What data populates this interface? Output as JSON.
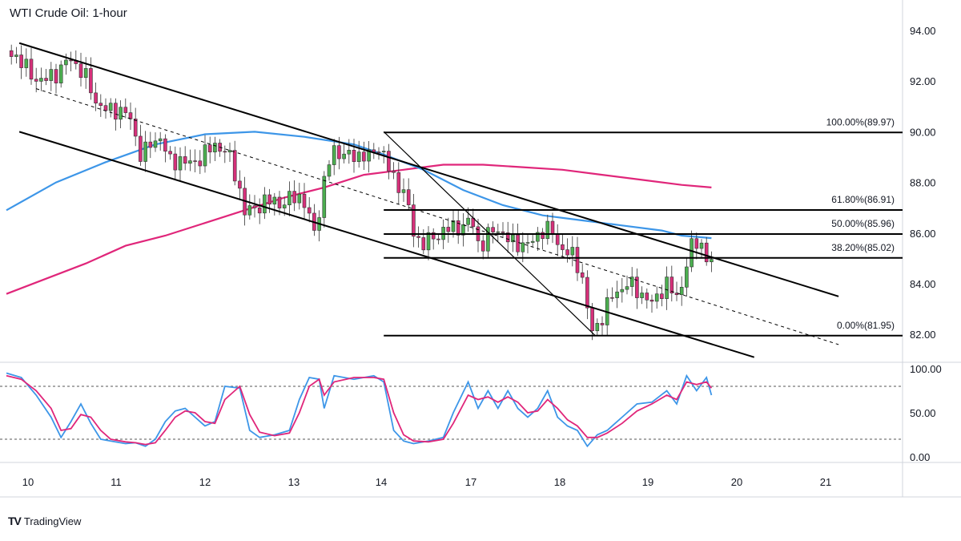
{
  "header": {
    "title": "WTI Crude Oil: 1-hour"
  },
  "brand": {
    "logo": "TV",
    "name": "TradingView"
  },
  "colors": {
    "up": "#4caf50",
    "down": "#d6307a",
    "ma_fast": "#3d96e8",
    "ma_slow": "#e0267a",
    "stoch_k": "#3d96e8",
    "stoch_d": "#e0267a",
    "line": "#000000",
    "grid": "#d1d4dc"
  },
  "chart_data": [
    {
      "type": "candlestick",
      "title": "WTI Crude Oil: 1-hour",
      "x_labels": [
        "10",
        "11",
        "12",
        "13",
        "14",
        "17",
        "18",
        "19",
        "20",
        "21"
      ],
      "y_ticks": [
        "94.00",
        "92.00",
        "90.00",
        "88.00",
        "86.00",
        "84.00",
        "82.00"
      ],
      "ylim": [
        80.9,
        95.2
      ],
      "close_path": [
        [
          0,
          93.2
        ],
        [
          1.3,
          92.9
        ],
        [
          2.5,
          92.2
        ],
        [
          3.7,
          92.0
        ],
        [
          5,
          92.3
        ],
        [
          6.4,
          92.9
        ],
        [
          7.8,
          92.3
        ],
        [
          9,
          91.2
        ],
        [
          10.2,
          90.8
        ],
        [
          11.3,
          90.9
        ],
        [
          12.4,
          90.6
        ],
        [
          13,
          89.8
        ],
        [
          13.6,
          89.0
        ],
        [
          14.5,
          89.5
        ],
        [
          15.5,
          89.8
        ],
        [
          16.4,
          88.8
        ],
        [
          17.5,
          88.9
        ],
        [
          18.3,
          88.7
        ],
        [
          19.3,
          88.9
        ],
        [
          20.2,
          89.2
        ],
        [
          21.0,
          89.5
        ],
        [
          21.8,
          89.3
        ],
        [
          22.6,
          88.9
        ],
        [
          23.3,
          88.0
        ],
        [
          24.0,
          86.8
        ],
        [
          25,
          87.0
        ],
        [
          26,
          87.2
        ],
        [
          27,
          87.3
        ],
        [
          28,
          87.1
        ],
        [
          28.8,
          87.5
        ],
        [
          29.8,
          87.4
        ],
        [
          30.7,
          86.3
        ],
        [
          31.2,
          86.0
        ],
        [
          31.7,
          87.5
        ],
        [
          32.2,
          88.3
        ],
        [
          32.8,
          89.3
        ],
        [
          33.5,
          89.2
        ],
        [
          34.5,
          89.0
        ],
        [
          35.5,
          89.1
        ],
        [
          36.5,
          89.0
        ],
        [
          37.6,
          89.5
        ],
        [
          38.2,
          88.8
        ],
        [
          38.9,
          88.2
        ],
        [
          39.5,
          87.9
        ],
        [
          40.2,
          87.6
        ],
        [
          40.7,
          86.4
        ],
        [
          41.2,
          85.8
        ],
        [
          42,
          85.6
        ],
        [
          43,
          85.8
        ],
        [
          44,
          86.1
        ],
        [
          45,
          86.2
        ],
        [
          46,
          86.3
        ],
        [
          46.9,
          86.5
        ],
        [
          47.5,
          85.6
        ],
        [
          48,
          85.6
        ],
        [
          48.7,
          86.0
        ],
        [
          49.5,
          86.2
        ],
        [
          50.3,
          85.8
        ],
        [
          51,
          85.6
        ],
        [
          51.8,
          85.6
        ],
        [
          52.6,
          85.5
        ],
        [
          53.4,
          85.9
        ],
        [
          54.2,
          86.2
        ],
        [
          55,
          86.0
        ],
        [
          55.8,
          85.4
        ],
        [
          56.6,
          85.2
        ],
        [
          57.3,
          85.0
        ],
        [
          58.0,
          84.2
        ],
        [
          58.5,
          83.0
        ],
        [
          59,
          82.1
        ],
        [
          59.6,
          82.4
        ],
        [
          60.2,
          82.9
        ],
        [
          61,
          83.5
        ],
        [
          61.8,
          83.8
        ],
        [
          62.6,
          84.0
        ],
        [
          63.4,
          83.8
        ],
        [
          64.2,
          83.5
        ],
        [
          65,
          83.2
        ],
        [
          65.8,
          83.7
        ],
        [
          66.6,
          84.0
        ],
        [
          67.4,
          83.4
        ],
        [
          68.2,
          84.2
        ],
        [
          68.8,
          85.3
        ],
        [
          69.3,
          85.6
        ],
        [
          69.8,
          85.8
        ],
        [
          70.4,
          85.0
        ],
        [
          71,
          84.8
        ]
      ],
      "fibonacci": [
        {
          "level": "100.00%",
          "price": 89.97,
          "label": "100.00%(89.97)"
        },
        {
          "level": "61.80%",
          "price": 86.91,
          "label": "61.80%(86.91)"
        },
        {
          "level": "50.00%",
          "price": 85.96,
          "label": "50.00%(85.96)"
        },
        {
          "level": "38.20%",
          "price": 85.02,
          "label": "38.20%(85.02)"
        },
        {
          "level": "0.00%",
          "price": 81.95,
          "label": "0.00%(81.95)"
        }
      ],
      "channel_upper": [
        [
          1.3,
          93.5
        ],
        [
          83.8,
          83.5
        ]
      ],
      "channel_lower": [
        [
          1.3,
          90.0
        ],
        [
          75.3,
          81.1
        ]
      ],
      "channel_mid": [
        [
          3.0,
          91.7
        ],
        [
          83.8,
          81.6
        ]
      ],
      "swing_line": [
        [
          38.0,
          90.0
        ],
        [
          59.3,
          81.95
        ]
      ],
      "ma_fast_path": [
        [
          0,
          86.9
        ],
        [
          5,
          88.0
        ],
        [
          10,
          88.8
        ],
        [
          15,
          89.5
        ],
        [
          20,
          89.9
        ],
        [
          25,
          90.0
        ],
        [
          30,
          89.8
        ],
        [
          35,
          89.5
        ],
        [
          38,
          89.1
        ],
        [
          42,
          88.5
        ],
        [
          46,
          87.7
        ],
        [
          50,
          87.1
        ],
        [
          54,
          86.7
        ],
        [
          58,
          86.5
        ],
        [
          62,
          86.3
        ],
        [
          66,
          86.1
        ],
        [
          68,
          85.9
        ],
        [
          69.5,
          85.85
        ],
        [
          71,
          85.8
        ]
      ],
      "ma_slow_path": [
        [
          0,
          83.6
        ],
        [
          4,
          84.2
        ],
        [
          8,
          84.8
        ],
        [
          12,
          85.5
        ],
        [
          16,
          85.9
        ],
        [
          20,
          86.4
        ],
        [
          24,
          86.9
        ],
        [
          28,
          87.4
        ],
        [
          32,
          87.8
        ],
        [
          36,
          88.3
        ],
        [
          40,
          88.5
        ],
        [
          44,
          88.7
        ],
        [
          48,
          88.7
        ],
        [
          52,
          88.6
        ],
        [
          56,
          88.5
        ],
        [
          60,
          88.3
        ],
        [
          64,
          88.1
        ],
        [
          68,
          87.9
        ],
        [
          71,
          87.8
        ]
      ]
    },
    {
      "type": "line",
      "series_note": "Stochastic oscillator",
      "y_ticks": [
        "100.00",
        "50.00",
        "0.00"
      ],
      "ylim": [
        0,
        100
      ],
      "levels": [
        80,
        20
      ],
      "k_path": [
        [
          0,
          95
        ],
        [
          1.5,
          90
        ],
        [
          3,
          70
        ],
        [
          4.5,
          45
        ],
        [
          5.5,
          22
        ],
        [
          6.5,
          40
        ],
        [
          7.5,
          60
        ],
        [
          8.5,
          38
        ],
        [
          9.5,
          20
        ],
        [
          10.5,
          18
        ],
        [
          12,
          15
        ],
        [
          13,
          16
        ],
        [
          14,
          12
        ],
        [
          15,
          20
        ],
        [
          16,
          40
        ],
        [
          17,
          52
        ],
        [
          18,
          55
        ],
        [
          19,
          45
        ],
        [
          20,
          35
        ],
        [
          21,
          40
        ],
        [
          22,
          80
        ],
        [
          23.5,
          78
        ],
        [
          24.5,
          30
        ],
        [
          25.5,
          22
        ],
        [
          27,
          25
        ],
        [
          28.5,
          30
        ],
        [
          29.5,
          65
        ],
        [
          30.5,
          90
        ],
        [
          31.5,
          88
        ],
        [
          32,
          55
        ],
        [
          33,
          92
        ],
        [
          35,
          88
        ],
        [
          37,
          92
        ],
        [
          38,
          85
        ],
        [
          39,
          30
        ],
        [
          40,
          18
        ],
        [
          41,
          15
        ],
        [
          42.5,
          18
        ],
        [
          44,
          22
        ],
        [
          45,
          50
        ],
        [
          46.5,
          85
        ],
        [
          47.5,
          55
        ],
        [
          48.5,
          75
        ],
        [
          49.5,
          55
        ],
        [
          50.5,
          75
        ],
        [
          51.5,
          55
        ],
        [
          52.5,
          45
        ],
        [
          53.5,
          55
        ],
        [
          54.5,
          75
        ],
        [
          55.5,
          45
        ],
        [
          56.5,
          35
        ],
        [
          57.5,
          30
        ],
        [
          58.5,
          12
        ],
        [
          59.5,
          25
        ],
        [
          60.5,
          30
        ],
        [
          62,
          45
        ],
        [
          63.5,
          60
        ],
        [
          65,
          62
        ],
        [
          66.5,
          75
        ],
        [
          67.5,
          60
        ],
        [
          68.5,
          92
        ],
        [
          69.5,
          75
        ],
        [
          70.5,
          90
        ],
        [
          71,
          70
        ]
      ],
      "d_path": [
        [
          0,
          92
        ],
        [
          1.5,
          88
        ],
        [
          3,
          75
        ],
        [
          4.5,
          55
        ],
        [
          5.5,
          30
        ],
        [
          6.5,
          32
        ],
        [
          7.5,
          48
        ],
        [
          8.5,
          45
        ],
        [
          9.5,
          30
        ],
        [
          10.5,
          20
        ],
        [
          12,
          17
        ],
        [
          13,
          16
        ],
        [
          14,
          14
        ],
        [
          15,
          16
        ],
        [
          16,
          30
        ],
        [
          17,
          45
        ],
        [
          18,
          52
        ],
        [
          19,
          50
        ],
        [
          20,
          40
        ],
        [
          21,
          38
        ],
        [
          22,
          65
        ],
        [
          23.5,
          80
        ],
        [
          24.5,
          48
        ],
        [
          25.5,
          28
        ],
        [
          27,
          24
        ],
        [
          28.5,
          27
        ],
        [
          29.5,
          50
        ],
        [
          30.5,
          80
        ],
        [
          31.5,
          88
        ],
        [
          32,
          70
        ],
        [
          33,
          85
        ],
        [
          35,
          90
        ],
        [
          37,
          90
        ],
        [
          38,
          88
        ],
        [
          39,
          50
        ],
        [
          40,
          25
        ],
        [
          41,
          18
        ],
        [
          42.5,
          17
        ],
        [
          44,
          20
        ],
        [
          45,
          38
        ],
        [
          46.5,
          70
        ],
        [
          47.5,
          65
        ],
        [
          48.5,
          68
        ],
        [
          49.5,
          62
        ],
        [
          50.5,
          68
        ],
        [
          51.5,
          62
        ],
        [
          52.5,
          50
        ],
        [
          53.5,
          52
        ],
        [
          54.5,
          65
        ],
        [
          55.5,
          55
        ],
        [
          56.5,
          42
        ],
        [
          57.5,
          35
        ],
        [
          58.5,
          22
        ],
        [
          59.5,
          22
        ],
        [
          60.5,
          27
        ],
        [
          62,
          38
        ],
        [
          63.5,
          52
        ],
        [
          65,
          60
        ],
        [
          66.5,
          70
        ],
        [
          67.5,
          65
        ],
        [
          68.5,
          85
        ],
        [
          69.5,
          82
        ],
        [
          70.5,
          85
        ],
        [
          71,
          78
        ]
      ]
    }
  ]
}
